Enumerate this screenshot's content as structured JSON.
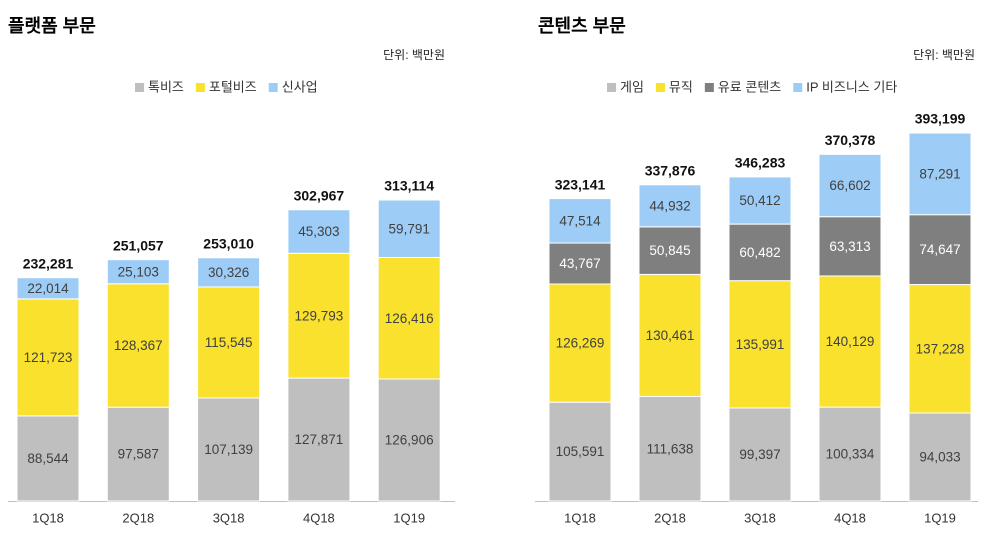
{
  "chart_data": [
    {
      "type": "stacked_bar",
      "title": "플랫폼 부문",
      "subtitle": "단위: 백만원",
      "categories": [
        "1Q18",
        "2Q18",
        "3Q18",
        "4Q18",
        "1Q19"
      ],
      "series": [
        {
          "name": "톡비즈",
          "color": "#bfbfbf",
          "values": [
            88544,
            97587,
            107139,
            127871,
            126906
          ],
          "value_labels": [
            "88,544",
            "97,587",
            "107,139",
            "127,871",
            "126,906"
          ]
        },
        {
          "name": "포털비즈",
          "color": "#f9e12e",
          "values": [
            121723,
            128367,
            115545,
            129793,
            126416
          ],
          "value_labels": [
            "121,723",
            "128,367",
            "115,545",
            "129,793",
            "126,416"
          ]
        },
        {
          "name": "신사업",
          "color": "#9dcdf6",
          "values": [
            22014,
            25103,
            30326,
            45303,
            59791
          ],
          "value_labels": [
            "22,014",
            "25,103",
            "30,326",
            "45,303",
            "59,791"
          ]
        }
      ],
      "totals": [
        232281,
        251057,
        253010,
        302967,
        313114
      ],
      "total_labels": [
        "232,281",
        "251,057",
        "253,010",
        "302,967",
        "313,114"
      ]
    },
    {
      "type": "stacked_bar",
      "title": "콘텐츠 부문",
      "subtitle": "단위: 백만원",
      "categories": [
        "1Q18",
        "2Q18",
        "3Q18",
        "4Q18",
        "1Q19"
      ],
      "series": [
        {
          "name": "게임",
          "color": "#bfbfbf",
          "values": [
            105591,
            111638,
            99397,
            100334,
            94033
          ],
          "value_labels": [
            "105,591",
            "111,638",
            "99,397",
            "100,334",
            "94,033"
          ]
        },
        {
          "name": "뮤직",
          "color": "#f9e12e",
          "values": [
            126269,
            130461,
            135991,
            140129,
            137228
          ],
          "value_labels": [
            "126,269",
            "130,461",
            "135,991",
            "140,129",
            "137,228"
          ]
        },
        {
          "name": "유료 콘텐츠",
          "color": "#7f7f7f",
          "values": [
            43767,
            50845,
            60482,
            63313,
            74647
          ],
          "value_labels": [
            "43,767",
            "50,845",
            "60,482",
            "63,313",
            "74,647"
          ]
        },
        {
          "name": "IP 비즈니스 기타",
          "color": "#9dcdf6",
          "values": [
            47514,
            44932,
            50412,
            66602,
            87291
          ],
          "value_labels": [
            "47,514",
            "44,932",
            "50,412",
            "66,602",
            "87,291"
          ]
        }
      ],
      "totals": [
        323141,
        337876,
        346283,
        370378,
        393199
      ],
      "total_labels": [
        "323,141",
        "337,876",
        "346,283",
        "370,378",
        "393,199"
      ]
    }
  ]
}
